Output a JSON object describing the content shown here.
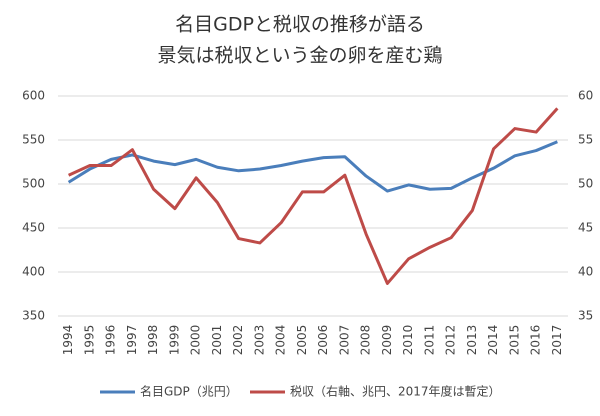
{
  "chart_data": {
    "type": "line",
    "title": [
      "名目GDPと税収の推移が語る",
      "景気は税収という金の卵を産む鶏"
    ],
    "categories": [
      "1994",
      "1995",
      "1996",
      "1997",
      "1998",
      "1999",
      "2000",
      "2001",
      "2002",
      "2003",
      "2004",
      "2005",
      "2006",
      "2007",
      "2008",
      "2009",
      "2010",
      "2011",
      "2012",
      "2013",
      "2014",
      "2015",
      "2016",
      "2017"
    ],
    "series": [
      {
        "name": "名目GDP（兆円）",
        "color": "#4a7ebb",
        "axis": "y",
        "values": [
          502,
          517,
          528,
          533,
          526,
          522,
          528,
          519,
          515,
          517,
          521,
          526,
          530,
          531,
          509,
          492,
          499,
          494,
          495,
          507,
          518,
          532,
          538,
          548
        ]
      },
      {
        "name": "税収（右軸、兆円、2017年度は暫定）",
        "color": "#be4b48",
        "axis": "y2",
        "values": [
          51.0,
          52.1,
          52.1,
          53.9,
          49.4,
          47.2,
          50.7,
          47.9,
          43.8,
          43.3,
          45.6,
          49.1,
          49.1,
          51.0,
          44.3,
          38.7,
          41.5,
          42.8,
          43.9,
          47.0,
          54.0,
          56.3,
          55.9,
          58.6
        ]
      }
    ],
    "ylim": [
      350,
      600
    ],
    "yticks": [
      350,
      400,
      450,
      500,
      550,
      600
    ],
    "y2lim": [
      35,
      60
    ],
    "y2ticks": [
      35,
      40,
      45,
      50,
      55,
      60
    ],
    "grid": true
  }
}
